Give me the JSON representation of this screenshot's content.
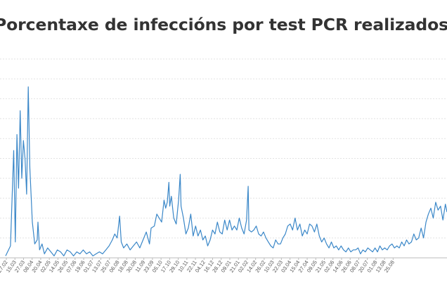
{
  "chart_data": {
    "type": "line",
    "title": "Porcentaxe de infeccións por test PCR realizados",
    "xlabel": "",
    "ylabel": "",
    "ylim": [
      0,
      10
    ],
    "grid": "horizontal",
    "legend": "none",
    "line_color": "#3a87c8",
    "x_tick_labels": [
      "27.02",
      "15.03",
      "27.03",
      "08.04",
      "20.04",
      "02.05",
      "14.05",
      "26.05",
      "07.06",
      "19.06",
      "01.07",
      "13.07",
      "25.07",
      "06.08",
      "18.08",
      "30.08",
      "11.09",
      "23.09",
      "05.10",
      "17.10",
      "29.10",
      "10.11",
      "22.11",
      "04.12",
      "16.12",
      "28.12",
      "09.01",
      "21.01",
      "02.02",
      "14.02",
      "26.02",
      "10.03",
      "22.03",
      "03.04",
      "15.04",
      "27.04",
      "09.05",
      "21.05",
      "02.06",
      "14.06",
      "26.06",
      "08.07",
      "20.07",
      "01.08",
      "13.08",
      "25.08"
    ],
    "series": [
      {
        "x_index_range": [
          0,
          546
        ],
        "keypoints": [
          [
            0,
            0.1
          ],
          [
            6,
            0.6
          ],
          [
            10,
            5.4
          ],
          [
            12,
            0.8
          ],
          [
            14,
            6.2
          ],
          [
            16,
            3.5
          ],
          [
            18,
            7.4
          ],
          [
            20,
            4.0
          ],
          [
            22,
            5.9
          ],
          [
            24,
            5.0
          ],
          [
            26,
            3.2
          ],
          [
            28,
            8.6
          ],
          [
            30,
            4.5
          ],
          [
            33,
            1.8
          ],
          [
            36,
            0.7
          ],
          [
            39,
            0.9
          ],
          [
            40,
            1.8
          ],
          [
            42,
            0.4
          ],
          [
            45,
            0.7
          ],
          [
            48,
            0.2
          ],
          [
            52,
            0.5
          ],
          [
            56,
            0.3
          ],
          [
            60,
            0.1
          ],
          [
            64,
            0.4
          ],
          [
            68,
            0.3
          ],
          [
            72,
            0.1
          ],
          [
            76,
            0.4
          ],
          [
            80,
            0.3
          ],
          [
            84,
            0.1
          ],
          [
            88,
            0.3
          ],
          [
            92,
            0.2
          ],
          [
            96,
            0.4
          ],
          [
            100,
            0.2
          ],
          [
            104,
            0.3
          ],
          [
            108,
            0.1
          ],
          [
            112,
            0.2
          ],
          [
            116,
            0.3
          ],
          [
            120,
            0.2
          ],
          [
            124,
            0.4
          ],
          [
            128,
            0.6
          ],
          [
            132,
            0.9
          ],
          [
            135,
            1.2
          ],
          [
            138,
            1.0
          ],
          [
            141,
            2.1
          ],
          [
            143,
            0.8
          ],
          [
            146,
            0.5
          ],
          [
            150,
            0.7
          ],
          [
            154,
            0.4
          ],
          [
            158,
            0.6
          ],
          [
            162,
            0.8
          ],
          [
            166,
            0.5
          ],
          [
            170,
            0.9
          ],
          [
            174,
            1.3
          ],
          [
            178,
            0.7
          ],
          [
            180,
            1.5
          ],
          [
            184,
            1.6
          ],
          [
            187,
            2.2
          ],
          [
            190,
            2.0
          ],
          [
            193,
            1.8
          ],
          [
            196,
            2.9
          ],
          [
            198,
            2.5
          ],
          [
            200,
            2.8
          ],
          [
            202,
            3.8
          ],
          [
            203,
            2.6
          ],
          [
            205,
            3.1
          ],
          [
            208,
            2.0
          ],
          [
            211,
            1.7
          ],
          [
            214,
            2.9
          ],
          [
            216,
            4.2
          ],
          [
            217,
            2.6
          ],
          [
            220,
            2.0
          ],
          [
            223,
            1.2
          ],
          [
            226,
            1.5
          ],
          [
            229,
            2.2
          ],
          [
            232,
            1.1
          ],
          [
            235,
            1.6
          ],
          [
            238,
            1.1
          ],
          [
            241,
            1.4
          ],
          [
            244,
            0.9
          ],
          [
            247,
            1.1
          ],
          [
            250,
            0.6
          ],
          [
            253,
            0.9
          ],
          [
            256,
            1.4
          ],
          [
            259,
            1.2
          ],
          [
            262,
            1.8
          ],
          [
            265,
            1.3
          ],
          [
            268,
            1.2
          ],
          [
            271,
            1.9
          ],
          [
            274,
            1.4
          ],
          [
            277,
            1.9
          ],
          [
            280,
            1.4
          ],
          [
            283,
            1.6
          ],
          [
            286,
            1.4
          ],
          [
            289,
            2.0
          ],
          [
            292,
            1.5
          ],
          [
            295,
            1.2
          ],
          [
            298,
            1.9
          ],
          [
            300,
            3.6
          ],
          [
            301,
            1.4
          ],
          [
            304,
            1.3
          ],
          [
            307,
            1.4
          ],
          [
            310,
            1.6
          ],
          [
            313,
            1.2
          ],
          [
            316,
            1.1
          ],
          [
            319,
            1.3
          ],
          [
            322,
            1.0
          ],
          [
            325,
            0.8
          ],
          [
            328,
            0.6
          ],
          [
            331,
            0.5
          ],
          [
            334,
            0.9
          ],
          [
            337,
            0.7
          ],
          [
            340,
            0.7
          ],
          [
            343,
            1.0
          ],
          [
            346,
            1.2
          ],
          [
            349,
            1.6
          ],
          [
            352,
            1.7
          ],
          [
            355,
            1.4
          ],
          [
            358,
            2.0
          ],
          [
            361,
            1.4
          ],
          [
            364,
            1.7
          ],
          [
            367,
            1.1
          ],
          [
            370,
            1.4
          ],
          [
            373,
            1.2
          ],
          [
            376,
            1.7
          ],
          [
            379,
            1.6
          ],
          [
            382,
            1.3
          ],
          [
            385,
            1.7
          ],
          [
            388,
            1.1
          ],
          [
            391,
            0.8
          ],
          [
            394,
            1.0
          ],
          [
            397,
            0.7
          ],
          [
            400,
            0.5
          ],
          [
            403,
            0.8
          ],
          [
            406,
            0.5
          ],
          [
            409,
            0.6
          ],
          [
            412,
            0.4
          ],
          [
            415,
            0.6
          ],
          [
            418,
            0.4
          ],
          [
            421,
            0.3
          ],
          [
            424,
            0.5
          ],
          [
            427,
            0.3
          ],
          [
            430,
            0.4
          ],
          [
            433,
            0.4
          ],
          [
            436,
            0.5
          ],
          [
            439,
            0.2
          ],
          [
            442,
            0.4
          ],
          [
            445,
            0.3
          ],
          [
            448,
            0.5
          ],
          [
            451,
            0.4
          ],
          [
            454,
            0.3
          ],
          [
            457,
            0.5
          ],
          [
            460,
            0.3
          ],
          [
            463,
            0.6
          ],
          [
            466,
            0.4
          ],
          [
            469,
            0.5
          ],
          [
            472,
            0.4
          ],
          [
            475,
            0.6
          ],
          [
            478,
            0.7
          ],
          [
            481,
            0.5
          ],
          [
            484,
            0.6
          ],
          [
            487,
            0.5
          ],
          [
            490,
            0.8
          ],
          [
            493,
            0.6
          ],
          [
            496,
            0.9
          ],
          [
            499,
            0.7
          ],
          [
            502,
            0.8
          ],
          [
            505,
            1.2
          ],
          [
            508,
            0.9
          ],
          [
            511,
            1.0
          ],
          [
            514,
            1.5
          ],
          [
            517,
            1.0
          ],
          [
            520,
            1.8
          ],
          [
            523,
            2.2
          ],
          [
            526,
            2.5
          ],
          [
            529,
            2.0
          ],
          [
            532,
            2.8
          ],
          [
            535,
            2.4
          ],
          [
            538,
            2.6
          ],
          [
            541,
            1.9
          ],
          [
            544,
            2.7
          ],
          [
            546,
            2.3
          ]
        ]
      }
    ]
  }
}
